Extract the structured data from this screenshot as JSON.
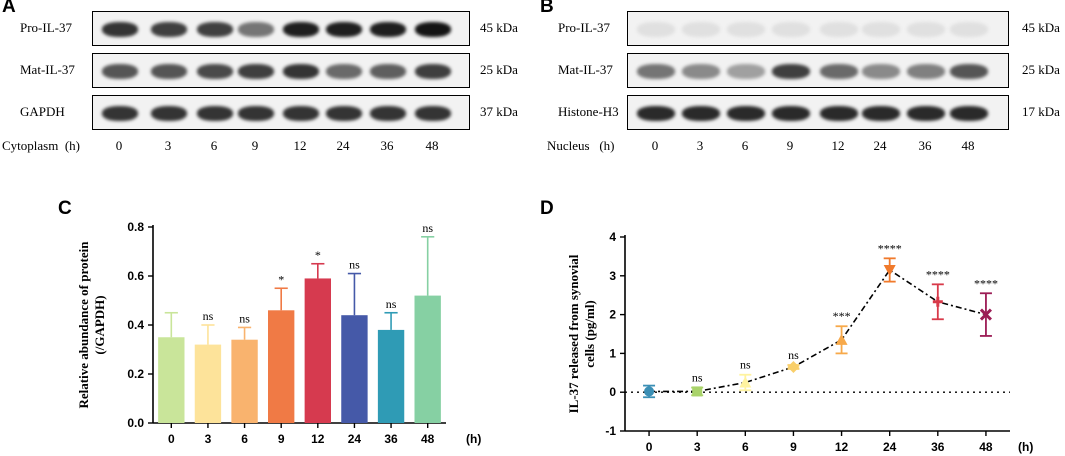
{
  "panel_a": {
    "letter": "A",
    "rows": [
      {
        "label": "Pro-IL-37",
        "kda": "45 kDa",
        "intensity": [
          0.85,
          0.8,
          0.8,
          0.55,
          0.95,
          0.95,
          0.95,
          1.0
        ]
      },
      {
        "label": "Mat-IL-37",
        "kda": "25 kDa",
        "intensity": [
          0.7,
          0.7,
          0.75,
          0.8,
          0.85,
          0.6,
          0.65,
          0.8
        ]
      },
      {
        "label": "GAPDH",
        "kda": "37 kDa",
        "intensity": [
          0.85,
          0.85,
          0.85,
          0.85,
          0.85,
          0.85,
          0.85,
          0.85
        ]
      }
    ],
    "axis_label": "Cytoplasm  (h)",
    "lanes": [
      "0",
      "3",
      "6",
      "9",
      "12",
      "24",
      "36",
      "48"
    ]
  },
  "panel_b": {
    "letter": "B",
    "rows": [
      {
        "label": "Pro-IL-37",
        "kda": "45 kDa",
        "intensity": [
          0.05,
          0.05,
          0.05,
          0.05,
          0.05,
          0.05,
          0.05,
          0.05
        ]
      },
      {
        "label": "Mat-IL-37",
        "kda": "25 kDa",
        "intensity": [
          0.55,
          0.45,
          0.35,
          0.8,
          0.6,
          0.45,
          0.5,
          0.7
        ]
      },
      {
        "label": "Histone-H3",
        "kda": "17 kDa",
        "intensity": [
          0.9,
          0.9,
          0.9,
          0.9,
          0.9,
          0.9,
          0.9,
          0.9
        ]
      }
    ],
    "axis_label": "Nucleus   (h)",
    "lanes": [
      "0",
      "3",
      "6",
      "9",
      "12",
      "24",
      "36",
      "48"
    ]
  },
  "panel_c": {
    "letter": "C",
    "chart_data": {
      "type": "bar",
      "categories": [
        "0",
        "3",
        "6",
        "9",
        "12",
        "24",
        "36",
        "48"
      ],
      "values": [
        0.35,
        0.32,
        0.34,
        0.46,
        0.59,
        0.44,
        0.38,
        0.52
      ],
      "errors": [
        0.1,
        0.08,
        0.05,
        0.09,
        0.06,
        0.17,
        0.07,
        0.24
      ],
      "annotations": [
        "",
        "ns",
        "ns",
        "*",
        "*",
        "ns",
        "ns",
        "ns"
      ],
      "colors": [
        "#c9e59a",
        "#fde39a",
        "#f9b36e",
        "#f07a45",
        "#d63a4f",
        "#4559a8",
        "#2f9bb5",
        "#86d0a3"
      ],
      "ylabel_line1": "Relative abundance of  protein",
      "ylabel_line2": "(/GAPDH)",
      "xunit": "(h)",
      "ylim": [
        0,
        0.8
      ],
      "yticks": [
        "0.0",
        "0.2",
        "0.4",
        "0.6",
        "0.8"
      ],
      "ytick_values": [
        0,
        0.2,
        0.4,
        0.6,
        0.8
      ]
    }
  },
  "panel_d": {
    "letter": "D",
    "chart_data": {
      "type": "line",
      "categories": [
        "0",
        "3",
        "6",
        "9",
        "12",
        "24",
        "36",
        "48"
      ],
      "values": [
        0.02,
        0.02,
        0.25,
        0.65,
        1.35,
        3.15,
        2.33,
        2.0
      ],
      "errors": [
        0.15,
        0.1,
        0.2,
        0.05,
        0.35,
        0.3,
        0.45,
        0.55
      ],
      "annotations": [
        "",
        "ns",
        "ns",
        "ns",
        "***",
        "****",
        "****",
        "****"
      ],
      "colors": [
        "#3b8fb5",
        "#a9d36a",
        "#fff3a0",
        "#f9cf6a",
        "#f7a94a",
        "#f07a2c",
        "#d83a4a",
        "#9c1c55"
      ],
      "markers": [
        "circle",
        "square",
        "triangle-up",
        "diamond",
        "triangle-up",
        "triangle-down",
        "cross",
        "x"
      ],
      "ylabel_line1": "IL-37 released from synovial",
      "ylabel_line2": "cells (pg/ml)",
      "xunit": "(h)",
      "ylim": [
        -1,
        4
      ],
      "yticks": [
        "-1",
        "0",
        "1",
        "2",
        "3",
        "4"
      ],
      "ytick_values": [
        -1,
        0,
        1,
        2,
        3,
        4
      ]
    }
  }
}
